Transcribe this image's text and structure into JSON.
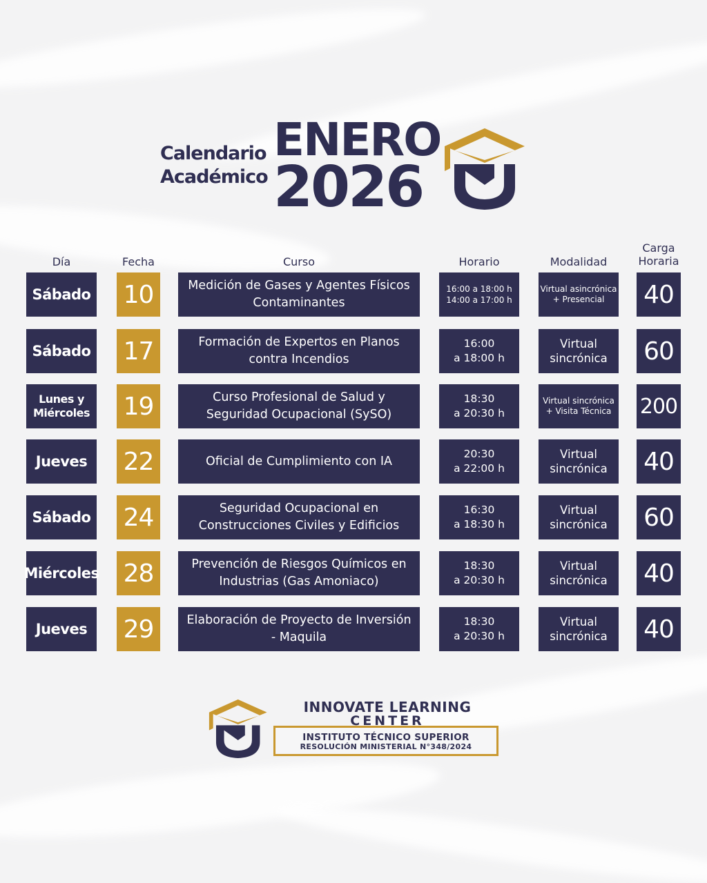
{
  "header": {
    "title_line1": "Calendario",
    "title_line2": "Académico",
    "month": "ENERO",
    "year": "2026"
  },
  "columns": {
    "day": "Día",
    "date": "Fecha",
    "course": "Curso",
    "schedule": "Horario",
    "mode": "Modalidad",
    "load_line1": "Carga",
    "load_line2": "Horaria"
  },
  "rows": [
    {
      "day": "Sábado",
      "date": "10",
      "course": "Medición de Gases y Agentes Físicos Contaminantes",
      "hours": "16:00 a 18:00 h\n14:00 a 17:00 h",
      "mode": "Virtual asincrónica\n+ Presencial",
      "load": "40"
    },
    {
      "day": "Sábado",
      "date": "17",
      "course": "Formación de Expertos en Planos contra Incendios",
      "hours": "16:00\na 18:00 h",
      "mode": "Virtual\nsincrónica",
      "load": "60"
    },
    {
      "day": "Lunes y Miércoles",
      "date": "19",
      "course": "Curso Profesional de Salud y Seguridad Ocupacional (SySO)",
      "hours": "18:30\na 20:30 h",
      "mode": "Virtual sincrónica\n+ Visita Técnica",
      "load": "200"
    },
    {
      "day": "Jueves",
      "date": "22",
      "course": "Oficial de Cumplimiento con IA",
      "hours": "20:30\na 22:00 h",
      "mode": "Virtual\nsincrónica",
      "load": "40"
    },
    {
      "day": "Sábado",
      "date": "24",
      "course": "Seguridad Ocupacional en Construcciones Civiles y Edificios",
      "hours": "16:30\na 18:30 h",
      "mode": "Virtual\nsincrónica",
      "load": "60"
    },
    {
      "day": "Miércoles",
      "date": "28",
      "course": "Prevención de Riesgos Químicos en Industrias (Gas Amoniaco)",
      "hours": "18:30\na 20:30 h",
      "mode": "Virtual\nsincrónica",
      "load": "40"
    },
    {
      "day": "Jueves",
      "date": "29",
      "course": "Elaboración de Proyecto de Inversión - Maquila",
      "hours": "18:30\na 20:30 h",
      "mode": "Virtual\nsincrónica",
      "load": "40"
    }
  ],
  "footer": {
    "brand_line1": "INNOVATE LEARNING",
    "brand_line2": "CENTER",
    "institute": "INSTITUTO TÉCNICO SUPERIOR",
    "resolution": "RESOLUCIÓN MINISTERIAL N°348/2024"
  },
  "colors": {
    "navy": "#302f52",
    "gold": "#c9982f",
    "background": "#f3f3f4"
  },
  "icons": {
    "header_logo": "graduation-cap-shield-icon",
    "footer_logo": "graduation-cap-shield-icon"
  }
}
